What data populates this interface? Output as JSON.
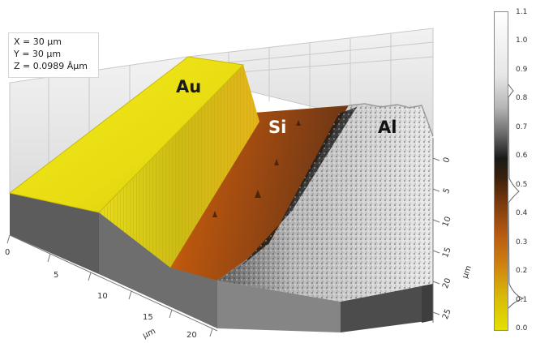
{
  "readout": {
    "x": "X = 30 µm",
    "y": "Y = 30 µm",
    "z": "Z = 0.0989 Âµm"
  },
  "materials": {
    "au": "Au",
    "si": "Si",
    "al": "Al"
  },
  "axes": {
    "front_ticks": [
      "0",
      "5",
      "10",
      "15",
      "20"
    ],
    "front_unit": "µm",
    "side_ticks": [
      "0",
      "5",
      "10",
      "15",
      "20",
      "25"
    ],
    "side_unit": "µm"
  },
  "colorbar": {
    "ticks": [
      "1.1",
      "1.0",
      "0.9",
      "0.8",
      "0.7",
      "0.6",
      "0.5",
      "0.4",
      "0.3",
      "0.2",
      "0.1",
      "0.0"
    ],
    "colors": {
      "low": "#e4e000",
      "mid_low": "#b75a10",
      "mid": "#1a1a1a",
      "high": "#ffffff"
    }
  }
}
